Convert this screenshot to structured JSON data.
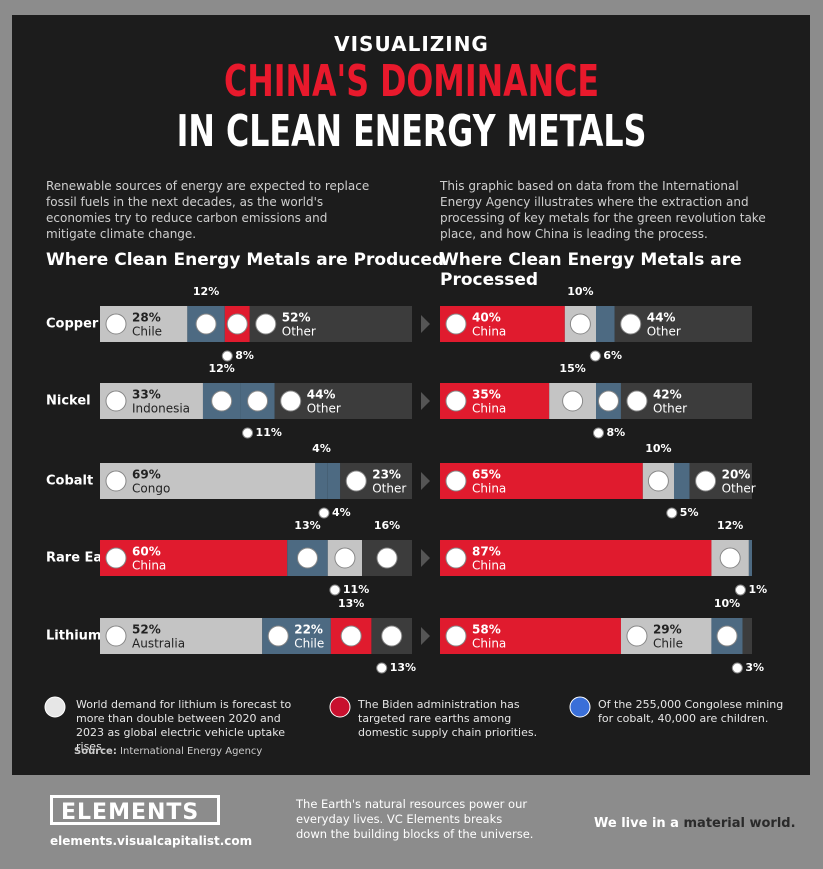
{
  "header": {
    "kicker": "VISUALIZING",
    "title_red": "CHINA'S DOMINANCE",
    "title_white": "IN CLEAN ENERGY METALS"
  },
  "intro": [
    "Renewable sources of energy are expected to replace fossil fuels in the next decades, as the world's economies try to reduce carbon emissions and mitigate climate change.",
    "This graphic based on data from the International Energy Agency illustrates where the extraction and processing of key metals for the green revolution take place, and how China is leading the process."
  ],
  "chart_data": [
    {
      "type": "stacked-bar",
      "title": "Where Clean Energy Metals are Produced",
      "categories": [
        "Copper",
        "Nickel",
        "Cobalt",
        "Rare Earths",
        "Lithium"
      ],
      "bars": [
        [
          {
            "name": "Chile",
            "value": 28,
            "value_label": "28%",
            "color": "#c4c4c4"
          },
          {
            "value": 12,
            "value_label": "12%",
            "color": "#4d6a82"
          },
          {
            "value": 8,
            "value_label": "8%",
            "color": "#e01b2e"
          },
          {
            "name": "Other",
            "value": 52,
            "value_label": "52%",
            "color": "#3c3c3c"
          }
        ],
        [
          {
            "name": "Indonesia",
            "value": 33,
            "value_label": "33%",
            "color": "#c4c4c4"
          },
          {
            "value": 12,
            "value_label": "12%",
            "color": "#4d6a82"
          },
          {
            "value": 11,
            "value_label": "11%",
            "color": "#4d6a82"
          },
          {
            "name": "Other",
            "value": 44,
            "value_label": "44%",
            "color": "#3c3c3c"
          }
        ],
        [
          {
            "name": "Congo",
            "value": 69,
            "value_label": "69%",
            "color": "#c4c4c4"
          },
          {
            "value": 4,
            "value_label": "4%",
            "color": "#4d6a82"
          },
          {
            "value": 4,
            "value_label": "4%",
            "color": "#4d6a82"
          },
          {
            "name": "Other",
            "value": 23,
            "value_label": "23%",
            "color": "#3c3c3c"
          }
        ],
        [
          {
            "name": "China",
            "value": 60,
            "value_label": "60%",
            "color": "#e01b2e"
          },
          {
            "value": 13,
            "value_label": "13%",
            "color": "#4d6a82"
          },
          {
            "value": 11,
            "value_label": "11%",
            "color": "#c4c4c4"
          },
          {
            "value": 16,
            "value_label": "16%",
            "color": "#3c3c3c"
          }
        ],
        [
          {
            "name": "Australia",
            "value": 52,
            "value_label": "52%",
            "color": "#c4c4c4"
          },
          {
            "name": "Chile",
            "value": 22,
            "value_label": "22%",
            "color": "#4d6a82"
          },
          {
            "value": 13,
            "value_label": "13%",
            "color": "#e01b2e"
          },
          {
            "value": 13,
            "value_label": "13%",
            "color": "#3c3c3c"
          }
        ]
      ]
    },
    {
      "type": "stacked-bar",
      "title": "Where Clean Energy Metals are Processed",
      "bars": [
        [
          {
            "name": "China",
            "value": 40,
            "value_label": "40%",
            "color": "#e01b2e"
          },
          {
            "value": 10,
            "value_label": "10%",
            "color": "#c4c4c4"
          },
          {
            "value": 6,
            "value_label": "6%",
            "color": "#4d6a82"
          },
          {
            "name": "Other",
            "value": 44,
            "value_label": "44%",
            "color": "#3c3c3c"
          }
        ],
        [
          {
            "name": "China",
            "value": 35,
            "value_label": "35%",
            "color": "#e01b2e"
          },
          {
            "value": 15,
            "value_label": "15%",
            "color": "#c4c4c4"
          },
          {
            "value": 8,
            "value_label": "8%",
            "color": "#4d6a82"
          },
          {
            "name": "Other",
            "value": 42,
            "value_label": "42%",
            "color": "#3c3c3c"
          }
        ],
        [
          {
            "name": "China",
            "value": 65,
            "value_label": "65%",
            "color": "#e01b2e"
          },
          {
            "value": 10,
            "value_label": "10%",
            "color": "#c4c4c4"
          },
          {
            "value": 5,
            "value_label": "5%",
            "color": "#4d6a82"
          },
          {
            "name": "Other",
            "value": 20,
            "value_label": "20%",
            "color": "#3c3c3c"
          }
        ],
        [
          {
            "name": "China",
            "value": 87,
            "value_label": "87%",
            "color": "#e01b2e"
          },
          {
            "value": 12,
            "value_label": "12%",
            "color": "#c4c4c4"
          },
          {
            "value": 1,
            "value_label": "1%",
            "color": "#4d6a82"
          }
        ],
        [
          {
            "name": "China",
            "value": 58,
            "value_label": "58%",
            "color": "#e01b2e"
          },
          {
            "name": "Chile",
            "value": 29,
            "value_label": "29%",
            "color": "#c4c4c4"
          },
          {
            "value": 10,
            "value_label": "10%",
            "color": "#4d6a82"
          },
          {
            "value": 3,
            "value_label": "3%",
            "color": "#3c3c3c"
          }
        ]
      ]
    }
  ],
  "notes": [
    "World demand for lithium is forecast to more than double between 2020 and 2023 as global electric vehicle uptake rises.",
    "The Biden administration has targeted rare earths among domestic supply chain priorities.",
    "Of the 255,000 Congolese mining for cobalt, 40,000 are children."
  ],
  "source": {
    "label": "Source:",
    "text": "International Energy Agency"
  },
  "footer": {
    "brand": "ELEMENTS",
    "url": "elements.visualcapitalist.com",
    "blurb": "The Earth's natural resources power our everyday lives. VC Elements breaks down the building blocks of the universe.",
    "tagline": "We live in a",
    "tagline_em": "material world."
  }
}
